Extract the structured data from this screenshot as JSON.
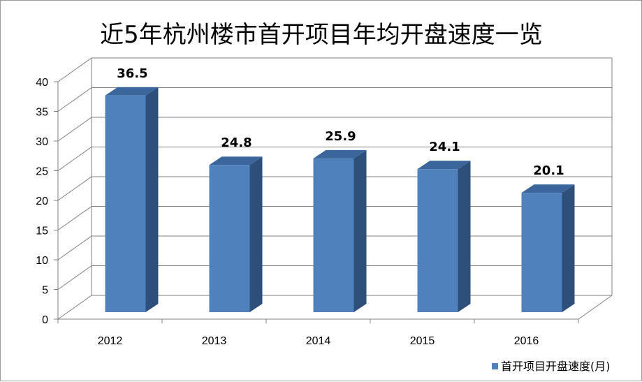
{
  "chart_data": {
    "type": "bar",
    "title": "近5年杭州楼市首开项目年均开盘速度一览",
    "categories": [
      "2012",
      "2013",
      "2014",
      "2015",
      "2016"
    ],
    "series": [
      {
        "name": "首开项目开盘速度(月)",
        "values": [
          36.5,
          24.8,
          25.9,
          24.1,
          20.1
        ]
      }
    ],
    "data_labels": [
      "36.5",
      "24.8",
      "25.9",
      "24.1",
      "20.1"
    ],
    "yticks": [
      "0",
      "5",
      "10",
      "15",
      "20",
      "25",
      "30",
      "35",
      "40"
    ],
    "ylim": [
      0,
      40
    ],
    "grid": true,
    "legend": "bottom-right",
    "colors": {
      "bar_front": "#4F81BD",
      "bar_side": "#2D4F79",
      "bar_top": "#3A669C",
      "grid": "#808080",
      "legend_marker": "#4F81BD"
    }
  }
}
